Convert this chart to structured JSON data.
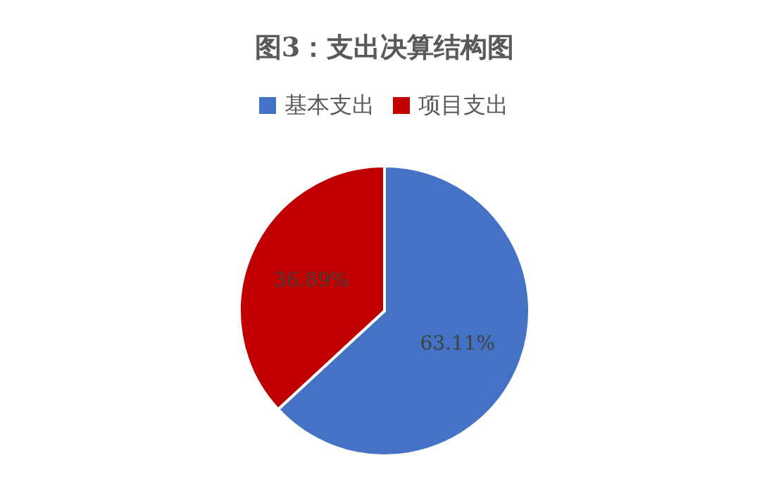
{
  "chart_data": {
    "type": "pie",
    "title": "图3：支出决算结构图",
    "categories": [
      "基本支出",
      "项目支出"
    ],
    "values": [
      63.11,
      36.89
    ],
    "colors": [
      "#4472c4",
      "#c00000"
    ],
    "value_labels": [
      "63.11%",
      "36.89%"
    ],
    "legend": "top"
  }
}
